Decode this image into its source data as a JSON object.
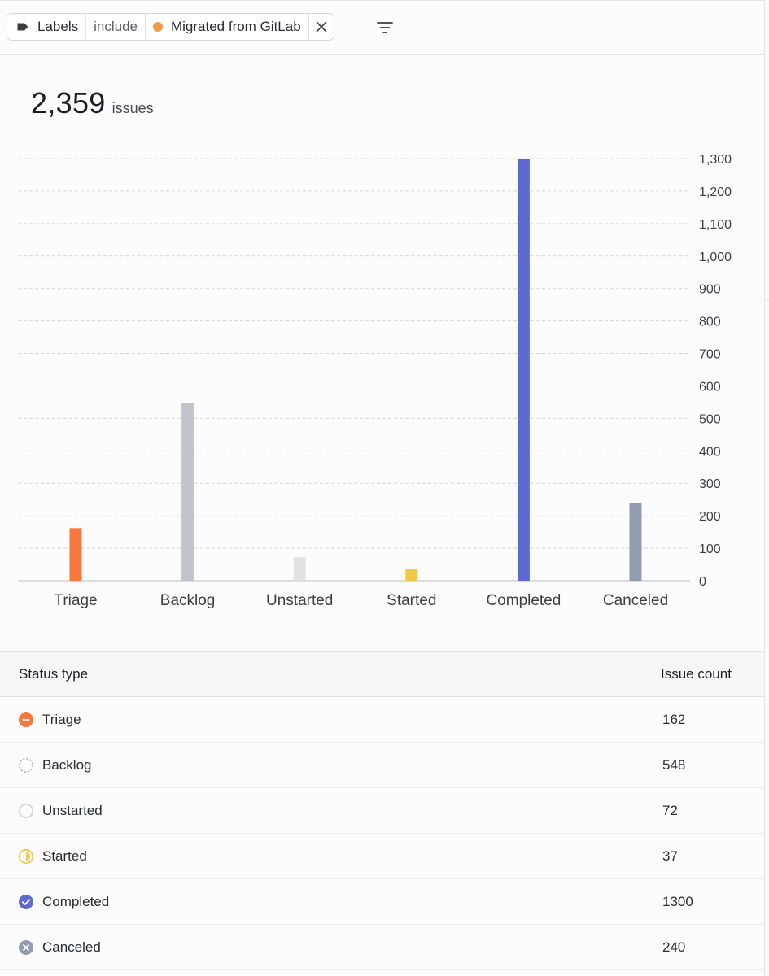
{
  "filter": {
    "field_label": "Labels",
    "operator": "include",
    "value": "Migrated from GitLab",
    "value_color": "#f2994a"
  },
  "summary": {
    "total": "2,359",
    "unit": "issues"
  },
  "chart_data": {
    "type": "bar",
    "categories": [
      "Triage",
      "Backlog",
      "Unstarted",
      "Started",
      "Completed",
      "Canceled"
    ],
    "values": [
      162,
      548,
      72,
      37,
      1300,
      240
    ],
    "colors": [
      "#f7773f",
      "#c1c4cb",
      "#e2e2e2",
      "#f0c94a",
      "#5e6ad2",
      "#949daf"
    ],
    "ylim": [
      0,
      1300
    ],
    "yticks": [
      0,
      100,
      200,
      300,
      400,
      500,
      600,
      700,
      800,
      900,
      1000,
      1100,
      1200,
      1300
    ],
    "ytick_labels": [
      "0",
      "100",
      "200",
      "300",
      "400",
      "500",
      "600",
      "700",
      "800",
      "900",
      "1,000",
      "1,100",
      "1,200",
      "1,300"
    ],
    "grid": true,
    "y_axis_side": "right"
  },
  "table": {
    "headers": {
      "status": "Status type",
      "count": "Issue count"
    },
    "rows": [
      {
        "status": "Triage",
        "icon": "triage-icon",
        "count": "162"
      },
      {
        "status": "Backlog",
        "icon": "backlog-icon",
        "count": "548"
      },
      {
        "status": "Unstarted",
        "icon": "unstarted-icon",
        "count": "72"
      },
      {
        "status": "Started",
        "icon": "started-icon",
        "count": "37"
      },
      {
        "status": "Completed",
        "icon": "completed-icon",
        "count": "1300"
      },
      {
        "status": "Canceled",
        "icon": "canceled-icon",
        "count": "240"
      }
    ]
  }
}
